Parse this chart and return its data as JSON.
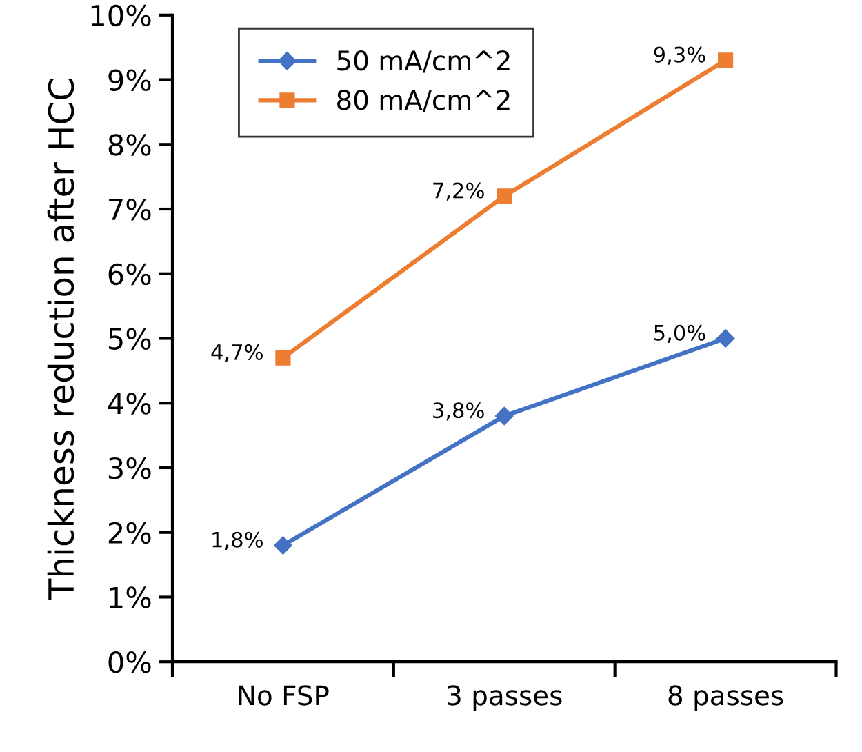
{
  "chart_data": {
    "type": "line",
    "ylabel": "Thickness reduction after HCC",
    "categories": [
      "No FSP",
      "3 passes",
      "8 passes"
    ],
    "series": [
      {
        "name": "50 mA/cm^2",
        "color": "#4472c4",
        "marker": "diamond",
        "values": [
          1.8,
          3.8,
          5.0
        ],
        "value_labels": [
          "1,8%",
          "3,8%",
          "5,0%"
        ]
      },
      {
        "name": "80 mA/cm^2",
        "color": "#ed7d31",
        "marker": "square",
        "values": [
          4.7,
          7.2,
          9.3
        ],
        "value_labels": [
          "4,7%",
          "7,2%",
          "9,3%"
        ]
      }
    ],
    "ylim": [
      0,
      10
    ],
    "yticks": [
      {
        "value": 0,
        "label": "0%"
      },
      {
        "value": 1,
        "label": "1%"
      },
      {
        "value": 2,
        "label": "2%"
      },
      {
        "value": 3,
        "label": "3%"
      },
      {
        "value": 4,
        "label": "4%"
      },
      {
        "value": 5,
        "label": "5%"
      },
      {
        "value": 6,
        "label": "6%"
      },
      {
        "value": 7,
        "label": "7%"
      },
      {
        "value": 8,
        "label": "8%"
      },
      {
        "value": 9,
        "label": "9%"
      },
      {
        "value": 10,
        "label": "10%"
      }
    ],
    "legend": "top left",
    "grid": false,
    "line_style": "solid"
  }
}
